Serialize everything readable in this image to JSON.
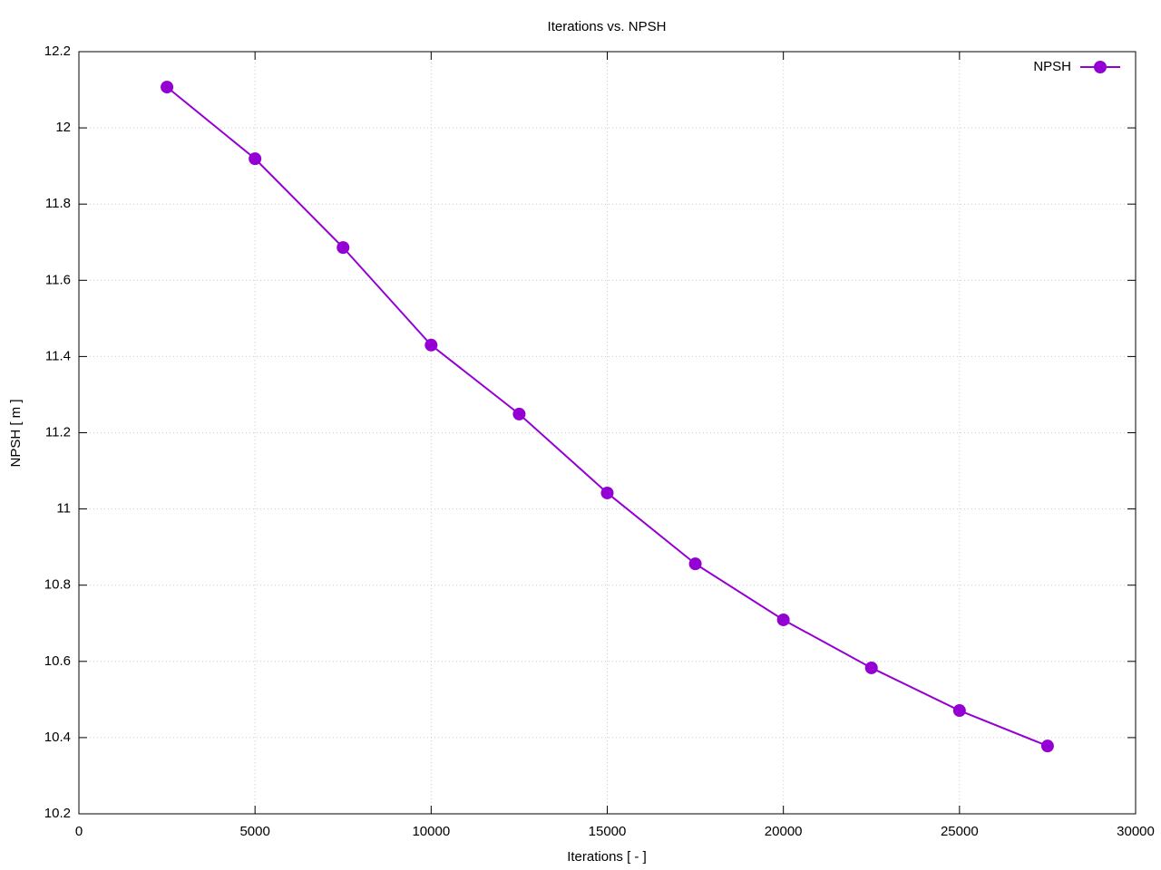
{
  "chart_data": {
    "type": "line",
    "title": "Iterations vs. NPSH",
    "x_label": "Iterations [ - ]",
    "y_label": "NPSH [ m ]",
    "x": [
      2500,
      5000,
      7500,
      10000,
      12500,
      15000,
      17500,
      20000,
      22500,
      25000,
      27500
    ],
    "series": [
      {
        "name": "NPSH",
        "color": "#9400d3",
        "values": [
          12.107,
          11.919,
          11.686,
          11.43,
          11.249,
          11.042,
          10.856,
          10.709,
          10.583,
          10.471,
          10.378
        ]
      }
    ],
    "xlim": [
      0,
      30000
    ],
    "xticks": [
      0,
      5000,
      10000,
      15000,
      20000,
      25000,
      30000
    ],
    "ylim": [
      10.2,
      12.2
    ],
    "yticks": [
      10.2,
      10.4,
      10.6,
      10.8,
      11,
      11.2,
      11.4,
      11.6,
      11.8,
      12,
      12.2
    ],
    "grid": true,
    "legend": "top-right"
  }
}
